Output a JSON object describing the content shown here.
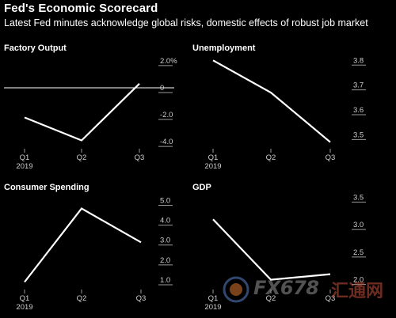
{
  "header": {
    "title": "Fed's Economic Scorecard",
    "subtitle": "Latest Fed minutes acknowledge global risks, domestic effects of robust job market"
  },
  "chart_data": [
    {
      "type": "line",
      "title": "Factory Output",
      "categories": [
        "Q1\n2019",
        "Q2",
        "Q3"
      ],
      "x_labels": [
        [
          "Q1",
          "2019"
        ],
        [
          "Q2"
        ],
        [
          "Q3"
        ]
      ],
      "values": [
        -2.2,
        -3.9,
        0.3
      ],
      "ylim": [
        -4.4,
        2.4
      ],
      "yticks": [
        2.0,
        0,
        -2.0,
        -4.0
      ],
      "ytick_labels": [
        "2.0%",
        "0",
        "-2.0",
        "-4.0"
      ],
      "zero_line": true
    },
    {
      "type": "line",
      "title": "Unemployment",
      "categories": [
        "Q1\n2019",
        "Q2",
        "Q3"
      ],
      "x_labels": [
        [
          "Q1",
          "2019"
        ],
        [
          "Q2"
        ],
        [
          "Q3"
        ]
      ],
      "values": [
        3.8,
        3.67,
        3.47
      ],
      "ylim": [
        3.45,
        3.82
      ],
      "yticks": [
        3.8,
        3.7,
        3.6,
        3.5
      ],
      "ytick_labels": [
        "3.8",
        "3.7",
        "3.6",
        "3.5"
      ]
    },
    {
      "type": "line",
      "title": "Consumer Spending",
      "categories": [
        "Q1\n2019",
        "Q2",
        "Q3"
      ],
      "x_labels": [
        [
          "Q1",
          "2019"
        ],
        [
          "Q2"
        ],
        [
          "Q3"
        ]
      ],
      "values": [
        0.9,
        4.6,
        2.9
      ],
      "ylim": [
        0.6,
        5.3
      ],
      "yticks": [
        5.0,
        4.0,
        3.0,
        2.0,
        1.0
      ],
      "ytick_labels": [
        "5.0",
        "4.0",
        "3.0",
        "2.0",
        "1.0"
      ]
    },
    {
      "type": "line",
      "title": "GDP",
      "categories": [
        "Q1\n2019",
        "Q2",
        "Q3"
      ],
      "x_labels": [
        [
          "Q1",
          "2019"
        ],
        [
          "Q2"
        ],
        [
          "Q3"
        ]
      ],
      "values": [
        3.1,
        2.0,
        2.1
      ],
      "ylim": [
        1.85,
        3.55
      ],
      "yticks": [
        3.5,
        3.0,
        2.5,
        2.0
      ],
      "ytick_labels": [
        "3.5",
        "3.0",
        "2.5",
        "2.0"
      ]
    }
  ],
  "watermark": {
    "text": "FX678",
    "cn": "汇通网"
  }
}
